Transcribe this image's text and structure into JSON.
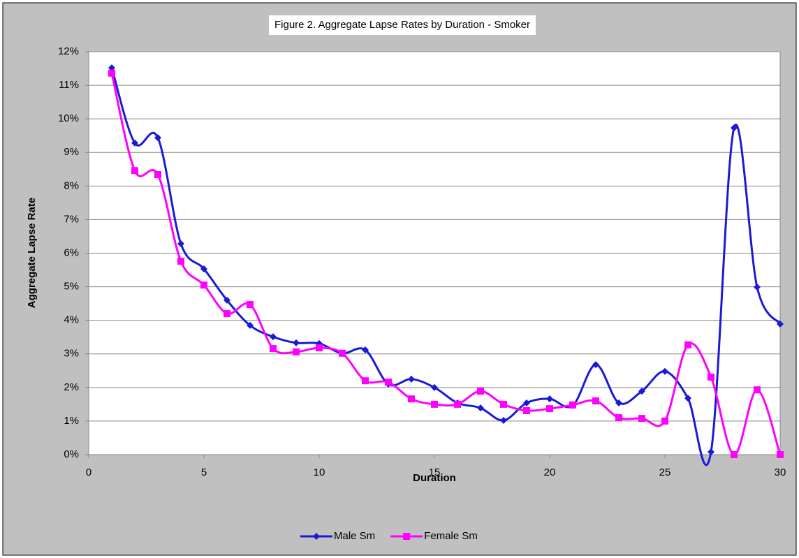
{
  "chart_data": {
    "type": "line",
    "title": "Figure 2. Aggregate Lapse Rates by Duration - Smoker",
    "x_label": "Duration",
    "y_label": "Aggregate Lapse Rate",
    "x": [
      1,
      2,
      3,
      4,
      5,
      6,
      7,
      8,
      9,
      10,
      11,
      12,
      13,
      14,
      15,
      16,
      17,
      18,
      19,
      20,
      21,
      22,
      23,
      24,
      25,
      26,
      27,
      28,
      29,
      30
    ],
    "series": [
      {
        "name": "Male Sm",
        "color": "#1a1ad6",
        "marker": "diamond",
        "values": [
          11.52,
          9.28,
          9.44,
          6.28,
          5.53,
          4.6,
          3.85,
          3.51,
          3.33,
          3.31,
          3.02,
          3.12,
          2.1,
          2.25,
          2.0,
          1.54,
          1.39,
          1.02,
          1.54,
          1.66,
          1.46,
          2.68,
          1.54,
          1.89,
          2.48,
          1.68,
          0.08,
          9.73,
          4.99,
          3.89
        ]
      },
      {
        "name": "Female Sm",
        "color": "#ff00ff",
        "marker": "square",
        "values": [
          11.36,
          8.46,
          8.34,
          5.76,
          5.05,
          4.2,
          4.47,
          3.16,
          3.06,
          3.18,
          3.02,
          2.2,
          2.16,
          1.66,
          1.5,
          1.5,
          1.89,
          1.5,
          1.31,
          1.37,
          1.48,
          1.6,
          1.1,
          1.08,
          1.0,
          3.27,
          2.31,
          0,
          1.93,
          0
        ]
      }
    ],
    "xlim": [
      0,
      30
    ],
    "xticks": [
      0,
      5,
      10,
      15,
      20,
      25,
      30
    ],
    "ylim": [
      0,
      12
    ],
    "yticks": [
      {
        "value": 0,
        "label": "0%"
      },
      {
        "value": 1,
        "label": "1%"
      },
      {
        "value": 2,
        "label": "2%"
      },
      {
        "value": 3,
        "label": "3%"
      },
      {
        "value": 4,
        "label": "4%"
      },
      {
        "value": 5,
        "label": "5%"
      },
      {
        "value": 6,
        "label": "6%"
      },
      {
        "value": 7,
        "label": "7%"
      },
      {
        "value": 8,
        "label": "8%"
      },
      {
        "value": 9,
        "label": "9%"
      },
      {
        "value": 10,
        "label": "10%"
      },
      {
        "value": 11,
        "label": "11%"
      },
      {
        "value": 12,
        "label": "12%"
      }
    ],
    "grid": true,
    "smooth": true,
    "legend": "bottom"
  }
}
